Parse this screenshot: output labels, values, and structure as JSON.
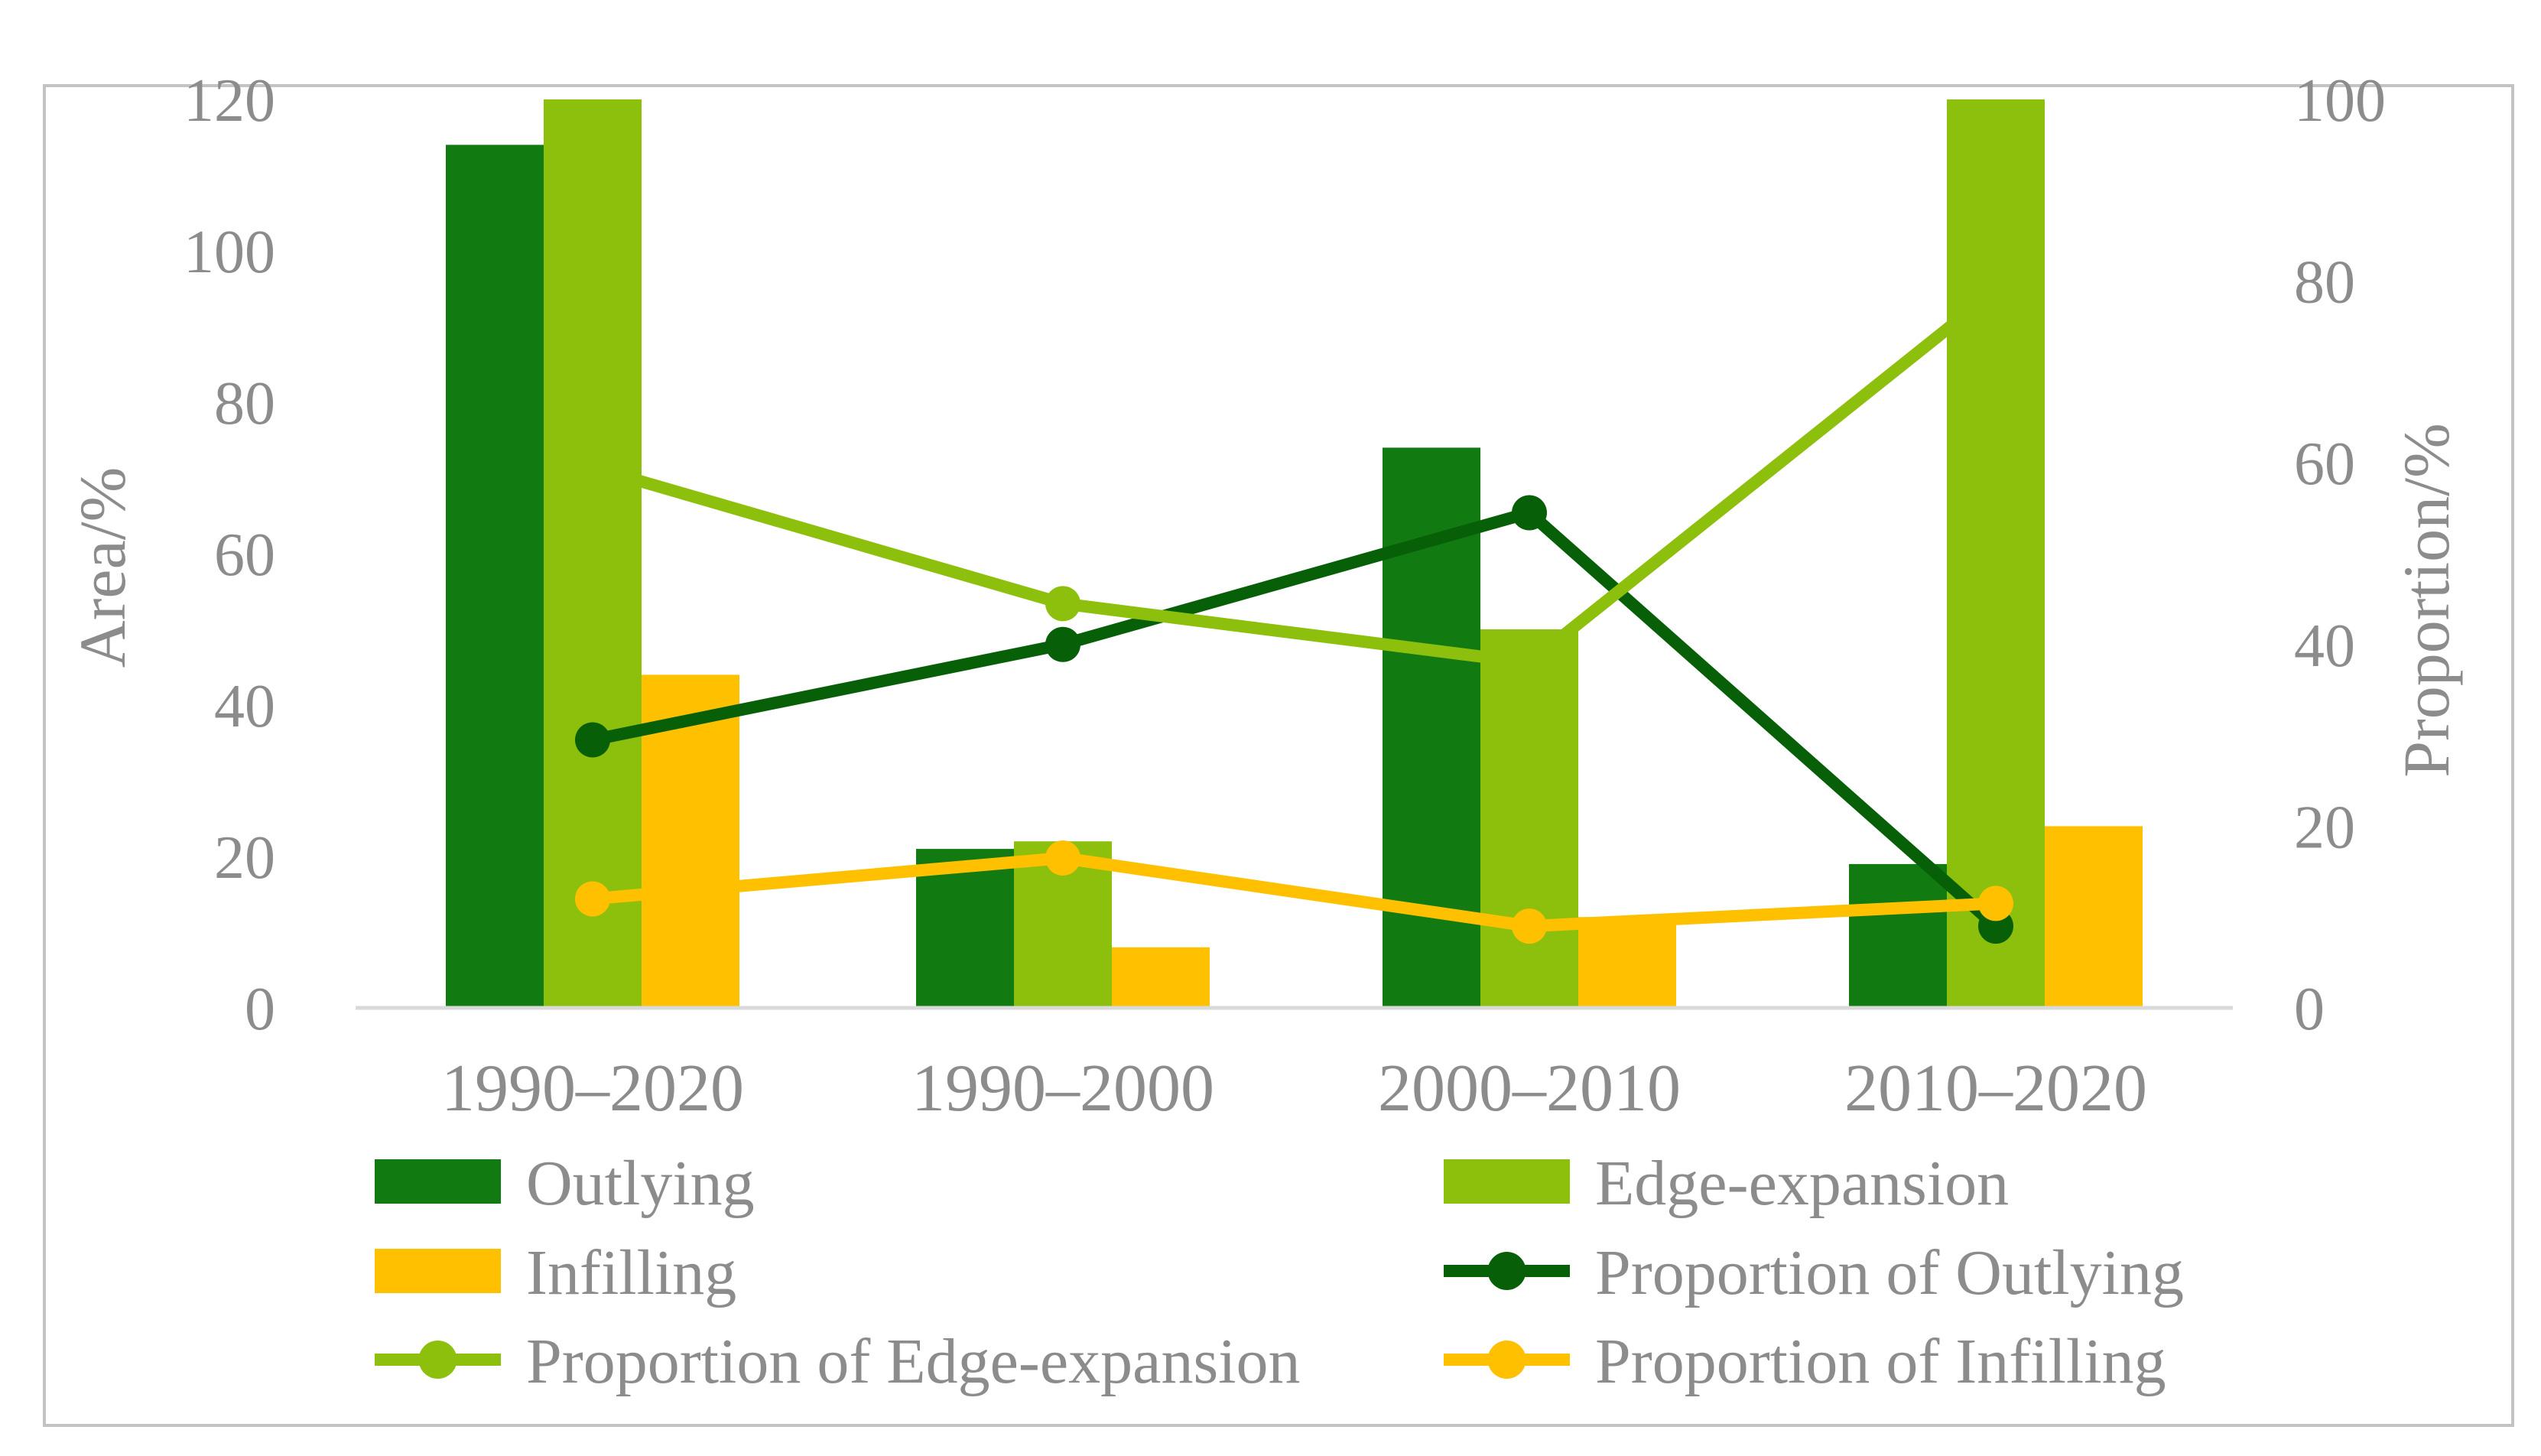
{
  "figure": {
    "kind": "combo-bar-line-chart",
    "background": "#ffffff",
    "frame_color": "#c3c3c3",
    "axis_line_color": "#d9d9d9",
    "text_color": "#8c8c8c"
  },
  "chart_data": {
    "type": "bar",
    "subtype": "grouped-bars-with-lines-on-secondary-axis",
    "categories": [
      "1990–2020",
      "1990–2000",
      "2000–2010",
      "2010–2020"
    ],
    "bar_series": [
      {
        "name": "Outlying",
        "color": "#117b11",
        "axis": "left",
        "values": [
          114,
          21,
          74,
          19
        ]
      },
      {
        "name": "Edge-expansion",
        "color": "#8dc00d",
        "axis": "left",
        "values": [
          120,
          22,
          50,
          120
        ]
      },
      {
        "name": "Infilling",
        "color": "#ffc000",
        "axis": "left",
        "values": [
          44,
          8,
          12,
          24
        ]
      }
    ],
    "line_series": [
      {
        "name": "Proportion of Outlying",
        "color": "#075f08",
        "axis": "right",
        "values": [
          29.5,
          40,
          54.5,
          9
        ]
      },
      {
        "name": "Proportion of Edge-expansion",
        "color": "#8dc00d",
        "axis": "right",
        "values": [
          59.5,
          44.5,
          38,
          79
        ]
      },
      {
        "name": "Proportion of Infilling",
        "color": "#ffc000",
        "axis": "right",
        "values": [
          12,
          16.5,
          9,
          11.5
        ]
      }
    ],
    "left_axis": {
      "label": "Area/%",
      "min": 0,
      "max": 120,
      "ticks": [
        0,
        20,
        40,
        60,
        80,
        100,
        120
      ]
    },
    "right_axis": {
      "label": "Proportion/%",
      "min": 0,
      "max": 100,
      "ticks": [
        0,
        20,
        40,
        60,
        80,
        100
      ]
    },
    "grid": "off",
    "legend": {
      "position": "bottom",
      "columns": 2,
      "items": [
        {
          "label": "Outlying",
          "type": "bar",
          "color": "#117b11"
        },
        {
          "label": "Edge-expansion",
          "type": "bar",
          "color": "#8dc00d"
        },
        {
          "label": "Infilling",
          "type": "bar",
          "color": "#ffc000"
        },
        {
          "label": "Proportion of Outlying",
          "type": "line",
          "color": "#075f08"
        },
        {
          "label": "Proportion of Edge-expansion",
          "type": "line",
          "color": "#8dc00d"
        },
        {
          "label": "Proportion of Infilling",
          "type": "line",
          "color": "#ffc000"
        }
      ]
    }
  }
}
